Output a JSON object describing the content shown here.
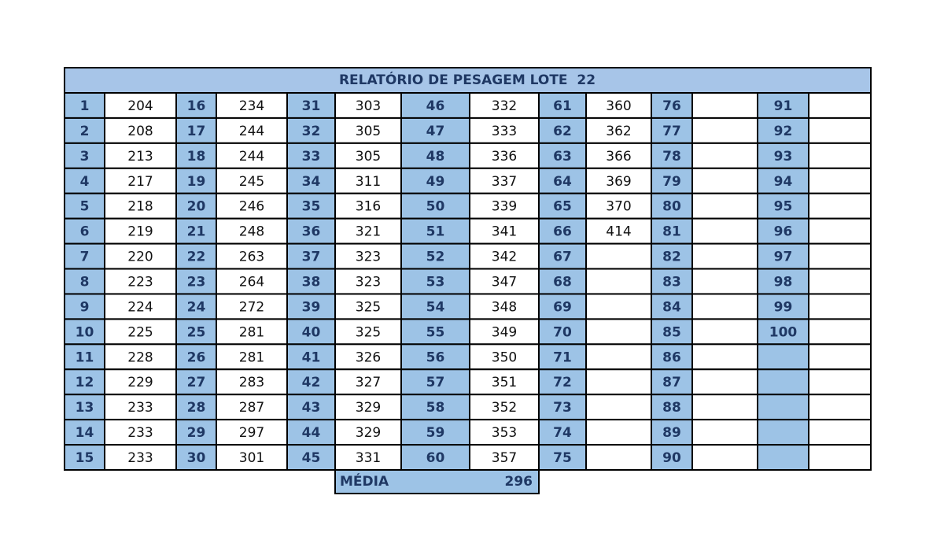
{
  "table": {
    "title": "RELATÓRIO DE PESAGEM LOTE  22",
    "rows": [
      [
        1,
        204,
        16,
        234,
        31,
        303,
        46,
        332,
        61,
        360,
        76,
        null,
        91,
        null
      ],
      [
        2,
        208,
        17,
        244,
        32,
        305,
        47,
        333,
        62,
        362,
        77,
        null,
        92,
        null
      ],
      [
        3,
        213,
        18,
        244,
        33,
        305,
        48,
        336,
        63,
        366,
        78,
        null,
        93,
        null
      ],
      [
        4,
        217,
        19,
        245,
        34,
        311,
        49,
        337,
        64,
        369,
        79,
        null,
        94,
        null
      ],
      [
        5,
        218,
        20,
        246,
        35,
        316,
        50,
        339,
        65,
        370,
        80,
        null,
        95,
        null
      ],
      [
        6,
        219,
        21,
        248,
        36,
        321,
        51,
        341,
        66,
        414,
        81,
        null,
        96,
        null
      ],
      [
        7,
        220,
        22,
        263,
        37,
        323,
        52,
        342,
        67,
        null,
        82,
        null,
        97,
        null
      ],
      [
        8,
        223,
        23,
        264,
        38,
        323,
        53,
        347,
        68,
        null,
        83,
        null,
        98,
        null
      ],
      [
        9,
        224,
        24,
        272,
        39,
        325,
        54,
        348,
        69,
        null,
        84,
        null,
        99,
        null
      ],
      [
        10,
        225,
        25,
        281,
        40,
        325,
        55,
        349,
        70,
        null,
        85,
        null,
        100,
        null
      ],
      [
        11,
        228,
        26,
        281,
        41,
        326,
        56,
        350,
        71,
        null,
        86,
        null,
        null,
        null
      ],
      [
        12,
        229,
        27,
        283,
        42,
        327,
        57,
        351,
        72,
        null,
        87,
        null,
        null,
        null
      ],
      [
        13,
        233,
        28,
        287,
        43,
        329,
        58,
        352,
        73,
        null,
        88,
        null,
        null,
        null
      ],
      [
        14,
        233,
        29,
        297,
        44,
        329,
        59,
        353,
        74,
        null,
        89,
        null,
        null,
        null
      ],
      [
        15,
        233,
        30,
        301,
        45,
        331,
        60,
        357,
        75,
        null,
        90,
        null,
        null,
        null
      ]
    ],
    "footer": {
      "label": "MÉDIA",
      "value": 296
    }
  }
}
